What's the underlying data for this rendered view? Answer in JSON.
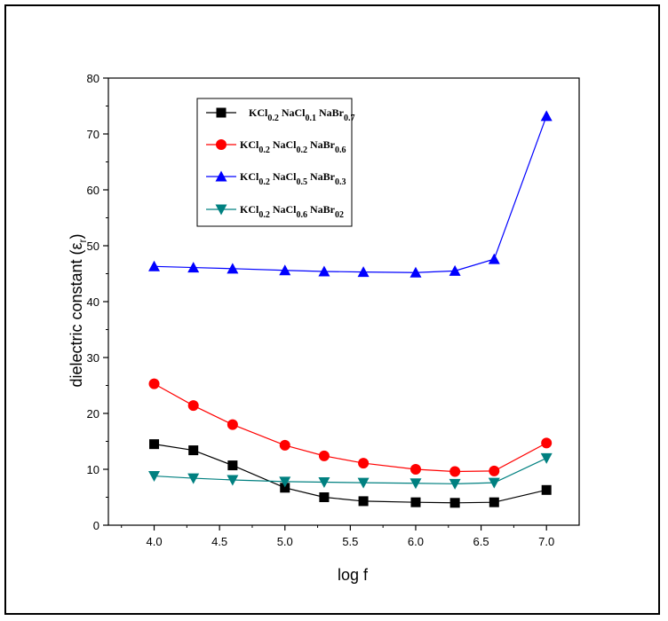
{
  "chart_data": {
    "type": "line",
    "xlabel": "log f",
    "ylabel": "dielectric constant (ε",
    "ylabel_sub": "r",
    "ylabel_tail": ")",
    "xlim": [
      3.65,
      7.25
    ],
    "ylim": [
      0,
      80
    ],
    "xticks": [
      4.0,
      4.5,
      5.0,
      5.5,
      6.0,
      6.5,
      7.0
    ],
    "xtick_labels": [
      "4.0",
      "4.5",
      "5.0",
      "5.5",
      "6.0",
      "6.5",
      "7.0"
    ],
    "yticks": [
      0,
      10,
      20,
      30,
      40,
      50,
      60,
      70,
      80
    ],
    "ytick_labels": [
      "0",
      "10",
      "20",
      "30",
      "40",
      "50",
      "60",
      "70",
      "80"
    ],
    "legend_position": "top-left",
    "grid": false,
    "x": [
      4.0,
      4.3,
      4.6,
      5.0,
      5.3,
      5.6,
      6.0,
      6.3,
      6.6,
      7.0
    ],
    "series": [
      {
        "name": "KCl0.2NaCl0.1NaBr0.7",
        "legend_parts": [
          [
            "KCl",
            "0.2"
          ],
          [
            "NaCl",
            "0.1"
          ],
          [
            "NaBr",
            "0.7"
          ]
        ],
        "color": "#000000",
        "marker": "square",
        "values": [
          14.5,
          13.4,
          10.7,
          6.7,
          5.0,
          4.3,
          4.1,
          4.0,
          4.1,
          6.3
        ]
      },
      {
        "name": "KCl0.2NaCl0.2NaBr0.6",
        "legend_parts": [
          [
            "KCl",
            "0.2"
          ],
          [
            "NaCl",
            "0.2"
          ],
          [
            "NaBr",
            "0.6"
          ]
        ],
        "color": "#ff0000",
        "marker": "circle",
        "values": [
          25.3,
          21.4,
          18.0,
          14.3,
          12.4,
          11.1,
          10.0,
          9.6,
          9.7,
          14.7
        ]
      },
      {
        "name": "KCl0.2NaCl0.5NaBr0.3",
        "legend_parts": [
          [
            "KCl",
            "0.2"
          ],
          [
            "NaCl",
            "0.5"
          ],
          [
            "NaBr",
            "0.3"
          ]
        ],
        "color": "#0000ff",
        "marker": "triangle-up",
        "values": [
          46.3,
          46.1,
          45.9,
          45.6,
          45.4,
          45.3,
          45.2,
          45.5,
          47.6,
          73.2
        ]
      },
      {
        "name": "KCl0.2NaCl0.6NaBr02",
        "legend_parts": [
          [
            "KCl",
            "0.2"
          ],
          [
            "NaCl",
            "0.6"
          ],
          [
            "NaBr",
            "02"
          ]
        ],
        "color": "#008080",
        "marker": "triangle-down",
        "values": [
          8.8,
          8.4,
          8.1,
          7.8,
          7.7,
          7.6,
          7.5,
          7.4,
          7.6,
          12.0
        ]
      }
    ]
  }
}
